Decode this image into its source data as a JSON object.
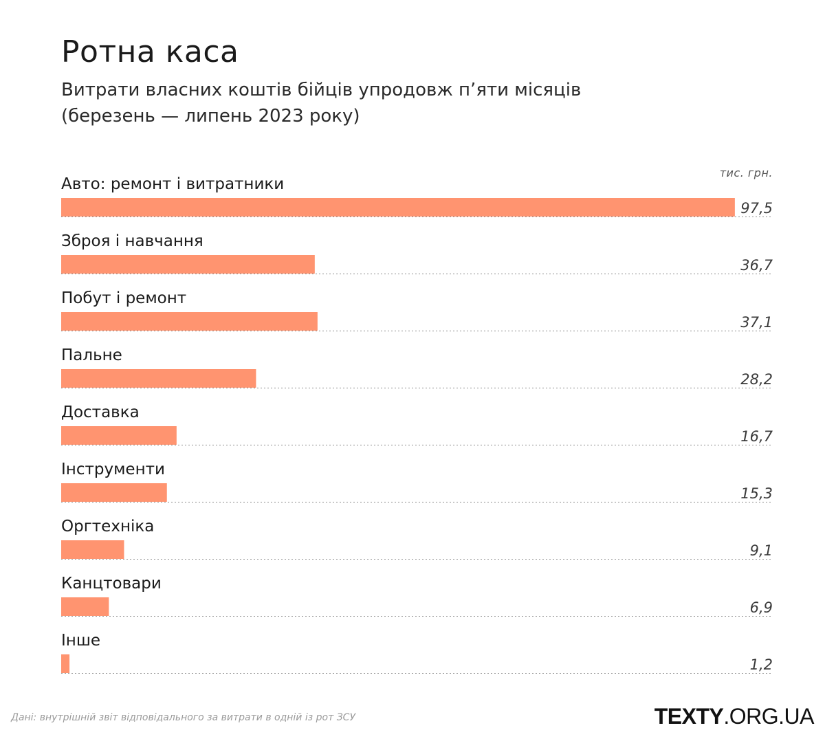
{
  "chart_data": {
    "type": "bar",
    "orientation": "horizontal",
    "title": "Ротна каса",
    "subtitle": [
      "Витрати власних коштів бійців упродовж п’яти місяців",
      "(березень — липень 2023 року)"
    ],
    "unit": "тис. грн.",
    "categories": [
      "Авто: ремонт і витратники",
      "Зброя і навчання",
      "Побут і ремонт",
      "Пальне",
      "Доставка",
      "Інструменти",
      "Оргтехніка",
      "Канцтовари",
      "Інше"
    ],
    "values": [
      97.5,
      36.7,
      37.1,
      28.2,
      16.7,
      15.3,
      9.1,
      6.9,
      1.2
    ],
    "value_labels": [
      "97,5",
      "36,7",
      "37,1",
      "28,2",
      "16,7",
      "15,3",
      "9,1",
      "6,9",
      "1,2"
    ],
    "bar_color": "#ff9470",
    "grid": false
  },
  "footer": {
    "source": "Дані: внутрішній звіт відповідального за витрати в одній із рот ЗСУ",
    "logo_bold": "TEXTY",
    "logo_rest": ".ORG.UA"
  },
  "colors": {
    "bar": "#ff9470",
    "text": "#1a1a1a",
    "dotted_line": "#8a8a8a",
    "source": "#9a9a9a"
  }
}
